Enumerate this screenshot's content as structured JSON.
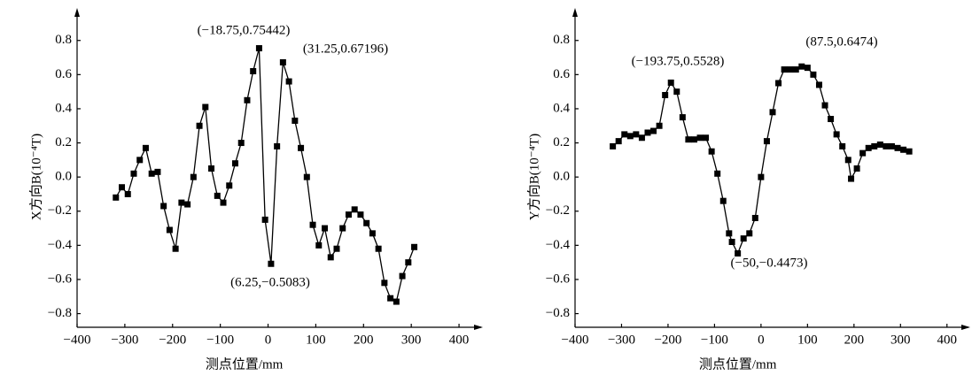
{
  "chart_data": [
    {
      "type": "line",
      "ylabel": "X方向B(10⁻⁴T)",
      "xlabel": "测点位置/mm",
      "xlim": [
        -400,
        450
      ],
      "ylim": [
        -0.88,
        0.98
      ],
      "xticks": [
        {
          "value": -400,
          "label": "−400"
        },
        {
          "value": -300,
          "label": "−300"
        },
        {
          "value": -200,
          "label": "−200"
        },
        {
          "value": -100,
          "label": "−100"
        },
        0,
        100,
        200,
        300,
        400
      ],
      "yticks": [
        {
          "value": -0.8,
          "label": "−0.8"
        },
        {
          "value": -0.6,
          "label": "−0.6"
        },
        {
          "value": -0.4,
          "label": "−0.4"
        },
        {
          "value": -0.2,
          "label": "−0.2"
        },
        {
          "value": 0,
          "label": "0.0"
        },
        0.2,
        0.4,
        0.6,
        0.8
      ],
      "color": "#000000",
      "x": [
        -318.75,
        -306.25,
        -293.75,
        -281.25,
        -268.75,
        -256.25,
        -243.75,
        -231.25,
        -218.75,
        -206.25,
        -193.75,
        -181.25,
        -168.75,
        -156.25,
        -143.75,
        -131.25,
        -118.75,
        -106.25,
        -93.75,
        -81.25,
        -68.75,
        -56.25,
        -43.75,
        -31.25,
        -18.75,
        -6.25,
        6.25,
        18.75,
        31.25,
        43.75,
        56.25,
        68.75,
        81.25,
        93.75,
        106.25,
        118.75,
        131.25,
        143.75,
        156.25,
        168.75,
        181.25,
        193.75,
        206.25,
        218.75,
        231.25,
        243.75,
        256.25,
        268.75,
        281.25,
        293.75,
        306.25
      ],
      "values": [
        -0.12,
        -0.06,
        -0.1,
        0.02,
        0.1,
        0.17,
        0.02,
        0.03,
        -0.17,
        -0.31,
        -0.42,
        -0.15,
        -0.16,
        0.0,
        0.3,
        0.41,
        0.05,
        -0.11,
        -0.15,
        -0.05,
        0.08,
        0.2,
        0.45,
        0.62,
        0.75442,
        -0.25,
        -0.5083,
        0.18,
        0.67196,
        0.56,
        0.33,
        0.17,
        0.0,
        -0.28,
        -0.4,
        -0.3,
        -0.47,
        -0.42,
        -0.3,
        -0.22,
        -0.19,
        -0.22,
        -0.27,
        -0.33,
        -0.42,
        -0.62,
        -0.71,
        -0.73,
        -0.58,
        -0.5,
        -0.41
      ],
      "annotations": [
        "(−18.75,0.75442)",
        "(31.25,0.67196)",
        "(6.25,−0.5083)"
      ]
    },
    {
      "type": "line",
      "ylabel": "Y方向B(10⁻⁴T)",
      "xlabel": "测点位置/mm",
      "xlim": [
        -400,
        450
      ],
      "ylim": [
        -0.88,
        0.98
      ],
      "xticks": [
        {
          "value": -400,
          "label": "−400"
        },
        {
          "value": -300,
          "label": "−300"
        },
        {
          "value": -200,
          "label": "−200"
        },
        {
          "value": -100,
          "label": "−100"
        },
        0,
        100,
        200,
        300,
        400
      ],
      "yticks": [
        {
          "value": -0.8,
          "label": "−0.8"
        },
        {
          "value": -0.6,
          "label": "−0.6"
        },
        {
          "value": -0.4,
          "label": "−0.4"
        },
        {
          "value": -0.2,
          "label": "−0.2"
        },
        {
          "value": 0,
          "label": "0.0"
        },
        0.2,
        0.4,
        0.6,
        0.8
      ],
      "color": "#000000",
      "x": [
        -318.75,
        -306.25,
        -293.75,
        -281.25,
        -268.75,
        -256.25,
        -243.75,
        -231.25,
        -218.75,
        -206.25,
        -193.75,
        -181.25,
        -168.75,
        -156.25,
        -143.75,
        -131.25,
        -118.75,
        -106.25,
        -93.75,
        -81.25,
        -68.75,
        -62.5,
        -50,
        -37.5,
        -25,
        -12.5,
        0,
        12.5,
        25,
        37.5,
        50,
        62.5,
        75,
        87.5,
        100,
        112.5,
        125,
        137.5,
        150,
        162.5,
        175,
        187.5,
        193.75,
        206.25,
        218.75,
        231.25,
        243.75,
        256.25,
        268.75,
        281.25,
        293.75,
        306.25,
        318.75
      ],
      "values": [
        0.18,
        0.21,
        0.25,
        0.24,
        0.25,
        0.23,
        0.26,
        0.27,
        0.3,
        0.48,
        0.5528,
        0.5,
        0.35,
        0.22,
        0.22,
        0.23,
        0.23,
        0.15,
        0.02,
        -0.14,
        -0.33,
        -0.38,
        -0.4473,
        -0.36,
        -0.33,
        -0.24,
        0.0,
        0.21,
        0.38,
        0.55,
        0.63,
        0.63,
        0.63,
        0.6474,
        0.64,
        0.6,
        0.54,
        0.42,
        0.34,
        0.25,
        0.18,
        0.1,
        -0.01,
        0.05,
        0.14,
        0.17,
        0.18,
        0.19,
        0.18,
        0.18,
        0.17,
        0.16,
        0.15
      ],
      "annotations": [
        "(−193.75,0.5528)",
        "(87.5,0.6474)",
        "(−50,−0.4473)"
      ]
    }
  ]
}
